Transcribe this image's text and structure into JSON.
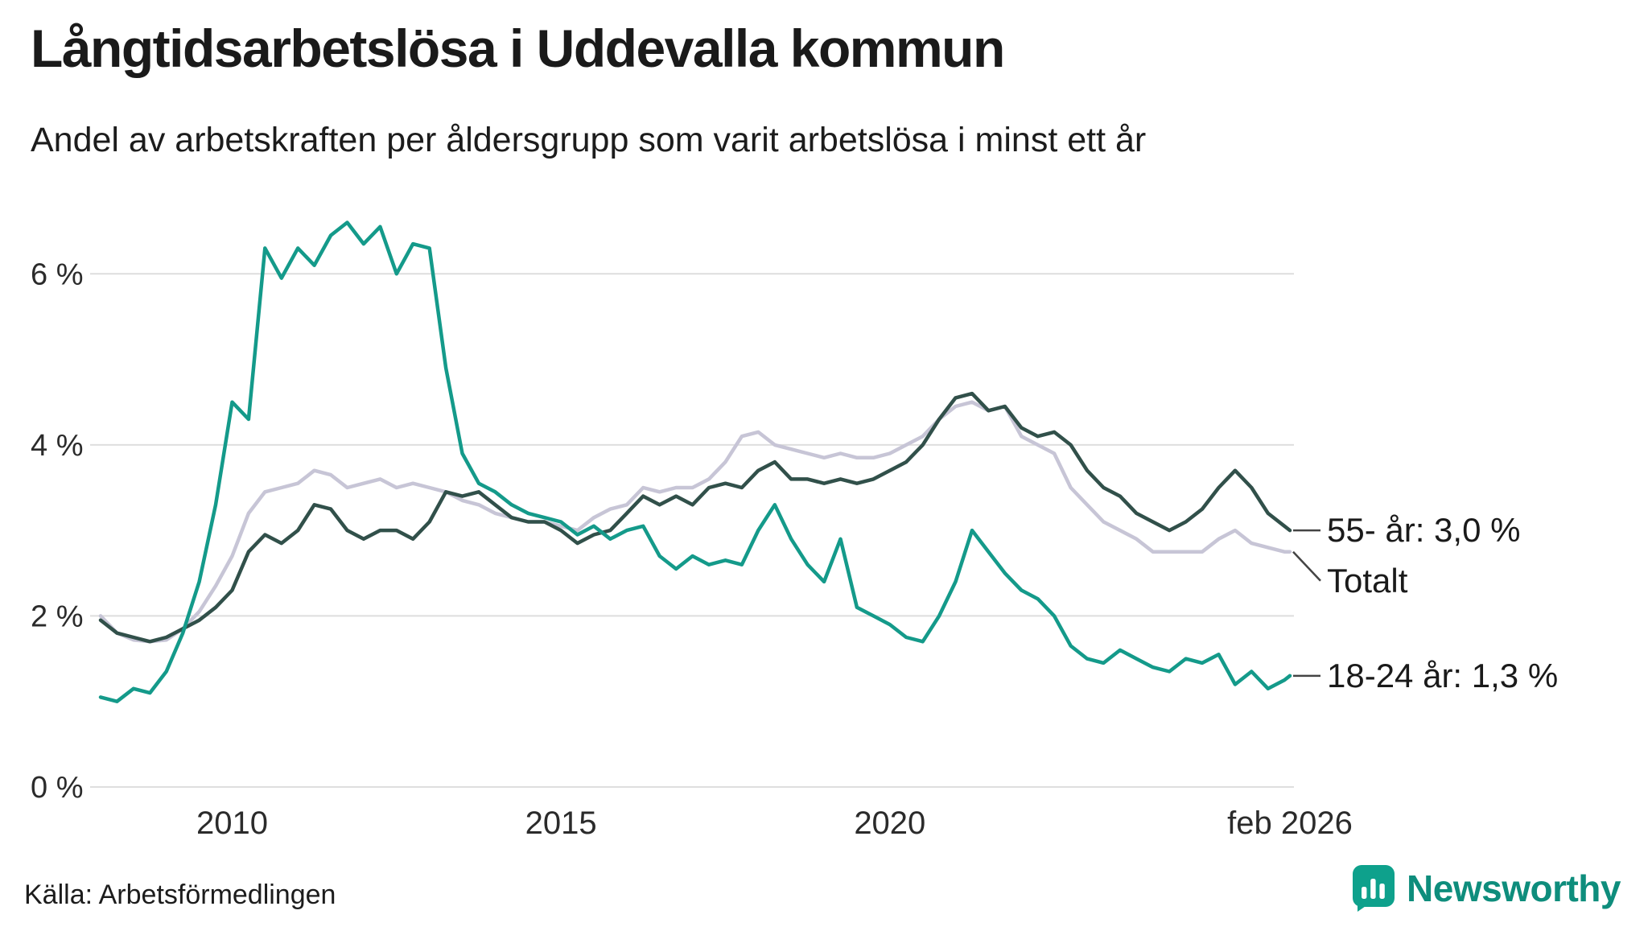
{
  "header": {
    "title": "Långtidsarbetslösa i Uddevalla kommun",
    "subtitle": "Andel av arbetskraften per åldersgrupp som varit arbetslösa i minst ett år"
  },
  "footer": {
    "source": "Källa: Arbetsförmedlingen",
    "brand_name": "Newsworthy"
  },
  "colors": {
    "accent_teal": "#149a8a",
    "dark_green": "#31504a",
    "light_lavender": "#c7c5d6",
    "grid": "#dedede",
    "axis_text": "#2b2b2b",
    "annotation_connector": "#444444",
    "brand_icon": "#0ea18c",
    "brand_text": "#0e8d7c"
  },
  "chart_data": {
    "type": "line",
    "title": "Långtidsarbetslösa i Uddevalla kommun",
    "subtitle": "Andel av arbetskraften per åldersgrupp som varit arbetslösa i minst ett år",
    "xlabel": "",
    "ylabel": "",
    "xlim": [
      2008,
      2026.083
    ],
    "ylim": [
      0,
      7
    ],
    "grid": "horizontal",
    "legend_position": "right-edge-annotations",
    "x": [
      2008,
      2008.25,
      2008.5,
      2008.75,
      2009,
      2009.25,
      2009.5,
      2009.75,
      2010,
      2010.25,
      2010.5,
      2010.75,
      2011,
      2011.25,
      2011.5,
      2011.75,
      2012,
      2012.25,
      2012.5,
      2012.75,
      2013,
      2013.25,
      2013.5,
      2013.75,
      2014,
      2014.25,
      2014.5,
      2014.75,
      2015,
      2015.25,
      2015.5,
      2015.75,
      2016,
      2016.25,
      2016.5,
      2016.75,
      2017,
      2017.25,
      2017.5,
      2017.75,
      2018,
      2018.25,
      2018.5,
      2018.75,
      2019,
      2019.25,
      2019.5,
      2019.75,
      2020,
      2020.25,
      2020.5,
      2020.75,
      2021,
      2021.25,
      2021.5,
      2021.75,
      2022,
      2022.25,
      2022.5,
      2022.75,
      2023,
      2023.25,
      2023.5,
      2023.75,
      2024,
      2024.25,
      2024.5,
      2024.75,
      2025,
      2025.25,
      2025.5,
      2025.75,
      2026,
      2026.083
    ],
    "series": [
      {
        "name": "Totalt",
        "color": "#c7c5d6",
        "values": [
          2.0,
          1.8,
          1.72,
          1.7,
          1.72,
          1.85,
          2.05,
          2.35,
          2.7,
          3.2,
          3.45,
          3.5,
          3.55,
          3.7,
          3.65,
          3.5,
          3.55,
          3.6,
          3.5,
          3.55,
          3.5,
          3.45,
          3.35,
          3.3,
          3.2,
          3.15,
          3.1,
          3.1,
          3.05,
          3.0,
          3.15,
          3.25,
          3.3,
          3.5,
          3.45,
          3.5,
          3.5,
          3.6,
          3.8,
          4.1,
          4.15,
          4.0,
          3.95,
          3.9,
          3.85,
          3.9,
          3.85,
          3.85,
          3.9,
          4.0,
          4.1,
          4.3,
          4.45,
          4.5,
          4.4,
          4.45,
          4.1,
          4.0,
          3.9,
          3.5,
          3.3,
          3.1,
          3.0,
          2.9,
          2.75,
          2.75,
          2.75,
          2.75,
          2.9,
          3.0,
          2.85,
          2.8,
          2.75,
          2.75
        ]
      },
      {
        "name": "55- år",
        "color": "#31504a",
        "values": [
          1.95,
          1.8,
          1.75,
          1.7,
          1.75,
          1.85,
          1.95,
          2.1,
          2.3,
          2.75,
          2.95,
          2.85,
          3.0,
          3.3,
          3.25,
          3.0,
          2.9,
          3.0,
          3.0,
          2.9,
          3.1,
          3.45,
          3.4,
          3.45,
          3.3,
          3.15,
          3.1,
          3.1,
          3.0,
          2.85,
          2.95,
          3.0,
          3.2,
          3.4,
          3.3,
          3.4,
          3.3,
          3.5,
          3.55,
          3.5,
          3.7,
          3.8,
          3.6,
          3.6,
          3.55,
          3.6,
          3.55,
          3.6,
          3.7,
          3.8,
          4.0,
          4.3,
          4.55,
          4.6,
          4.4,
          4.45,
          4.2,
          4.1,
          4.15,
          4.0,
          3.7,
          3.5,
          3.4,
          3.2,
          3.1,
          3.0,
          3.1,
          3.25,
          3.5,
          3.7,
          3.5,
          3.2,
          3.05,
          3.0
        ]
      },
      {
        "name": "18-24 år",
        "color": "#149a8a",
        "values": [
          1.05,
          1.0,
          1.15,
          1.1,
          1.35,
          1.8,
          2.4,
          3.3,
          4.5,
          4.3,
          6.3,
          5.95,
          6.3,
          6.1,
          6.45,
          6.6,
          6.35,
          6.55,
          6.0,
          6.35,
          6.3,
          4.9,
          3.9,
          3.55,
          3.45,
          3.3,
          3.2,
          3.15,
          3.1,
          2.95,
          3.05,
          2.9,
          3.0,
          3.05,
          2.7,
          2.55,
          2.7,
          2.6,
          2.65,
          2.6,
          3.0,
          3.3,
          2.9,
          2.6,
          2.4,
          2.9,
          2.1,
          2.0,
          1.9,
          1.75,
          1.7,
          2.0,
          2.4,
          3.0,
          2.75,
          2.5,
          2.3,
          2.2,
          2.0,
          1.65,
          1.5,
          1.45,
          1.6,
          1.5,
          1.4,
          1.35,
          1.5,
          1.45,
          1.55,
          1.2,
          1.35,
          1.15,
          1.25,
          1.3
        ]
      }
    ],
    "yticks": [
      {
        "value": 0,
        "label": "0 %"
      },
      {
        "value": 2,
        "label": "2 %"
      },
      {
        "value": 4,
        "label": "4 %"
      },
      {
        "value": 6,
        "label": "6 %"
      }
    ],
    "xticks": [
      {
        "value": 2010,
        "label": "2010"
      },
      {
        "value": 2015,
        "label": "2015"
      },
      {
        "value": 2020,
        "label": "2020"
      },
      {
        "value": 2026.083,
        "label": "feb 2026"
      }
    ],
    "annotations": [
      {
        "label": "55- år: 3,0 %",
        "y": 3.0,
        "dy": 0
      },
      {
        "label": "Totalt",
        "y": 2.75,
        "dy": 36
      },
      {
        "label": "18-24 år: 1,3 %",
        "y": 1.3,
        "dy": 0
      }
    ]
  }
}
